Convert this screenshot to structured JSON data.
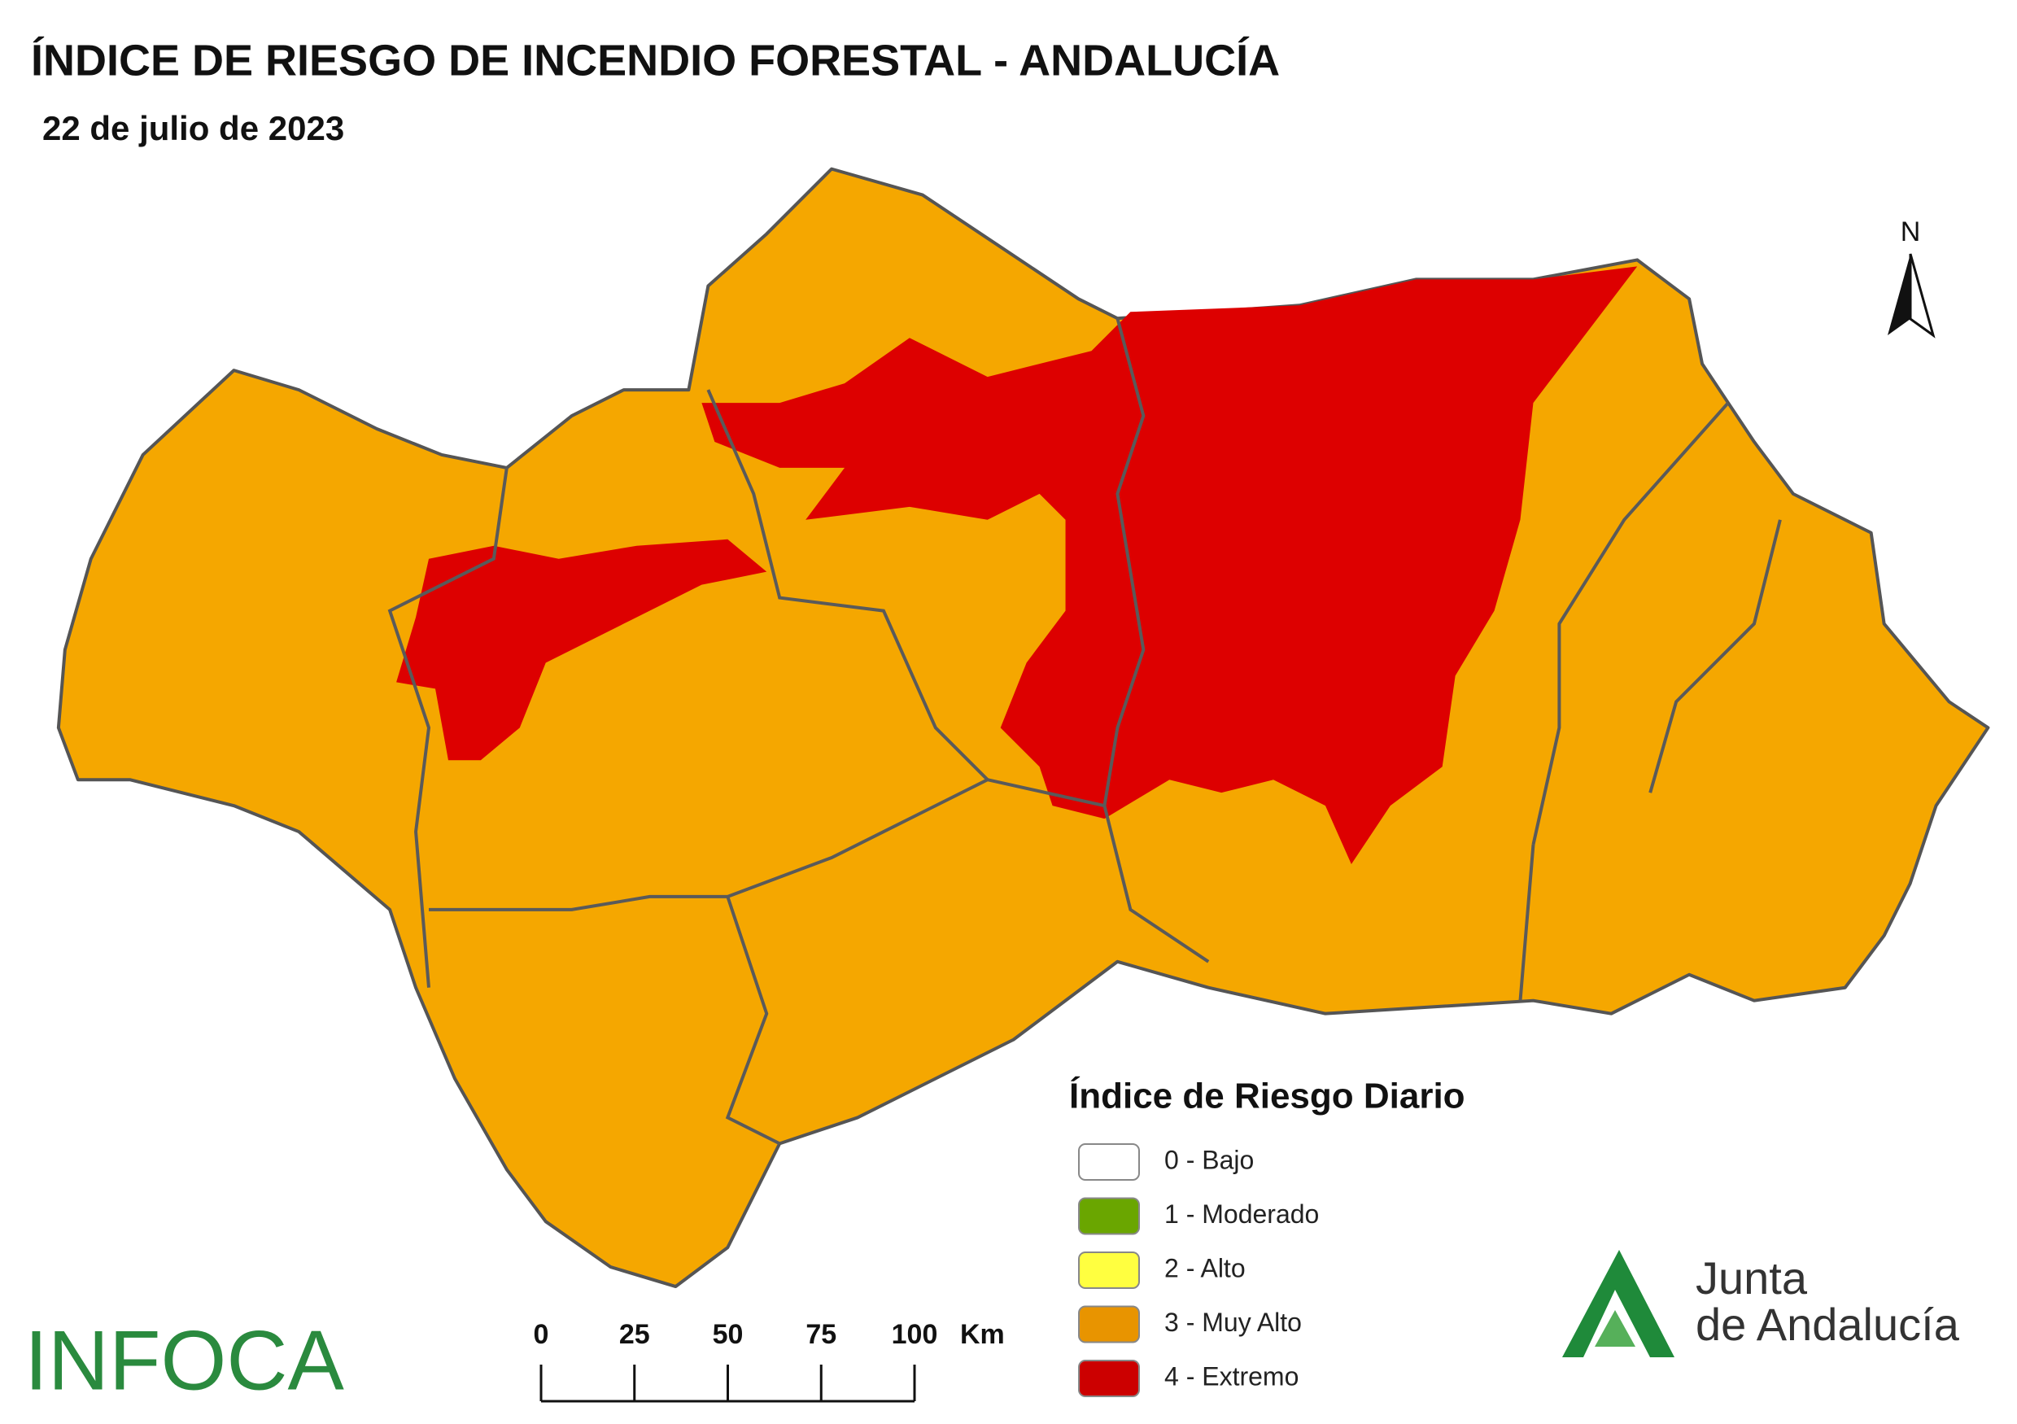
{
  "header": {
    "title": "ÍNDICE DE RIESGO DE INCENDIO FORESTAL - ANDALUCÍA",
    "subtitle": "22 de julio de 2023"
  },
  "north": "N",
  "legend": {
    "title": "Índice de Riesgo Diario",
    "items": [
      {
        "label": "0 - Bajo",
        "color": "#ffffff"
      },
      {
        "label": "1 - Moderado",
        "color": "#6aa600"
      },
      {
        "label": "2 - Alto",
        "color": "#ffff40"
      },
      {
        "label": "3 - Muy Alto",
        "color": "#e89400"
      },
      {
        "label": "4 - Extremo",
        "color": "#cc0000"
      }
    ]
  },
  "scale_bar": {
    "ticks": [
      0,
      25,
      50,
      75,
      100
    ],
    "unit": "Km"
  },
  "logos": {
    "infoca": "INFOCA",
    "junta_line1": "Junta",
    "junta_line2": "de Andalucía"
  }
}
